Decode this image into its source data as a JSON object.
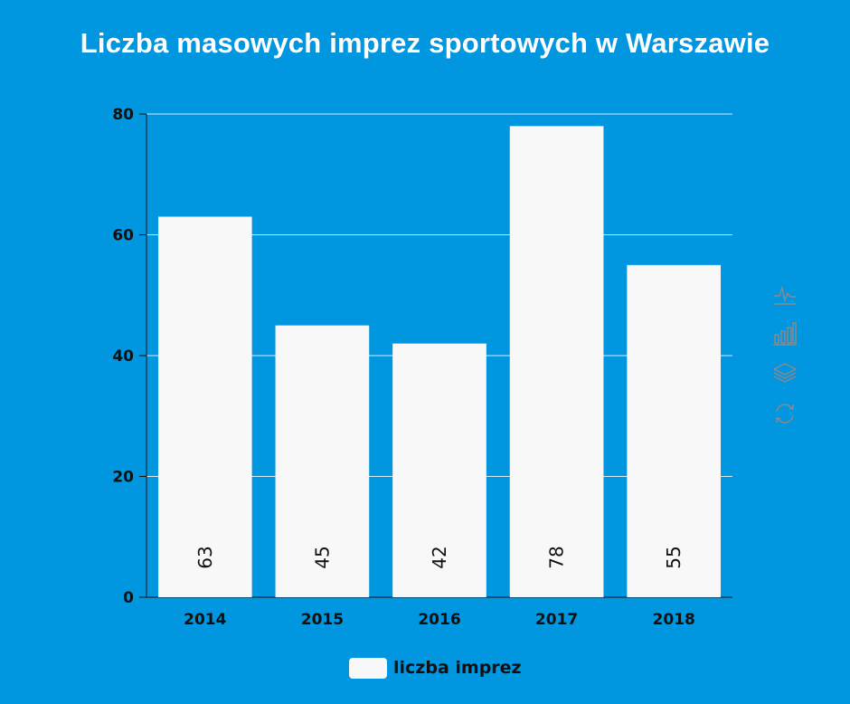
{
  "colors": {
    "background": "#0096e0",
    "bar": "#f8f8f8",
    "text": "#111111",
    "title": "#ffffff",
    "gridline": "#d9ecf7",
    "toolbox_icon": "#8a8a8a"
  },
  "toolbox": {
    "icons": [
      "line-chart-icon",
      "bar-chart-icon",
      "stack-icon",
      "restore-icon"
    ]
  },
  "legend": {
    "label": "liczba imprez"
  },
  "chart_data": {
    "type": "bar",
    "title": "Liczba masowych imprez sportowych w Warszawie",
    "xlabel": "",
    "ylabel": "",
    "categories": [
      "2014",
      "2015",
      "2016",
      "2017",
      "2018"
    ],
    "series": [
      {
        "name": "liczba imprez",
        "values": [
          63,
          45,
          42,
          78,
          55
        ]
      }
    ],
    "ylim": [
      0,
      80
    ],
    "yticks": [
      "0",
      "20",
      "40",
      "60",
      "80"
    ],
    "data_labels": [
      "63",
      "45",
      "42",
      "78",
      "55"
    ],
    "grid": true,
    "legend_position": "bottom"
  }
}
